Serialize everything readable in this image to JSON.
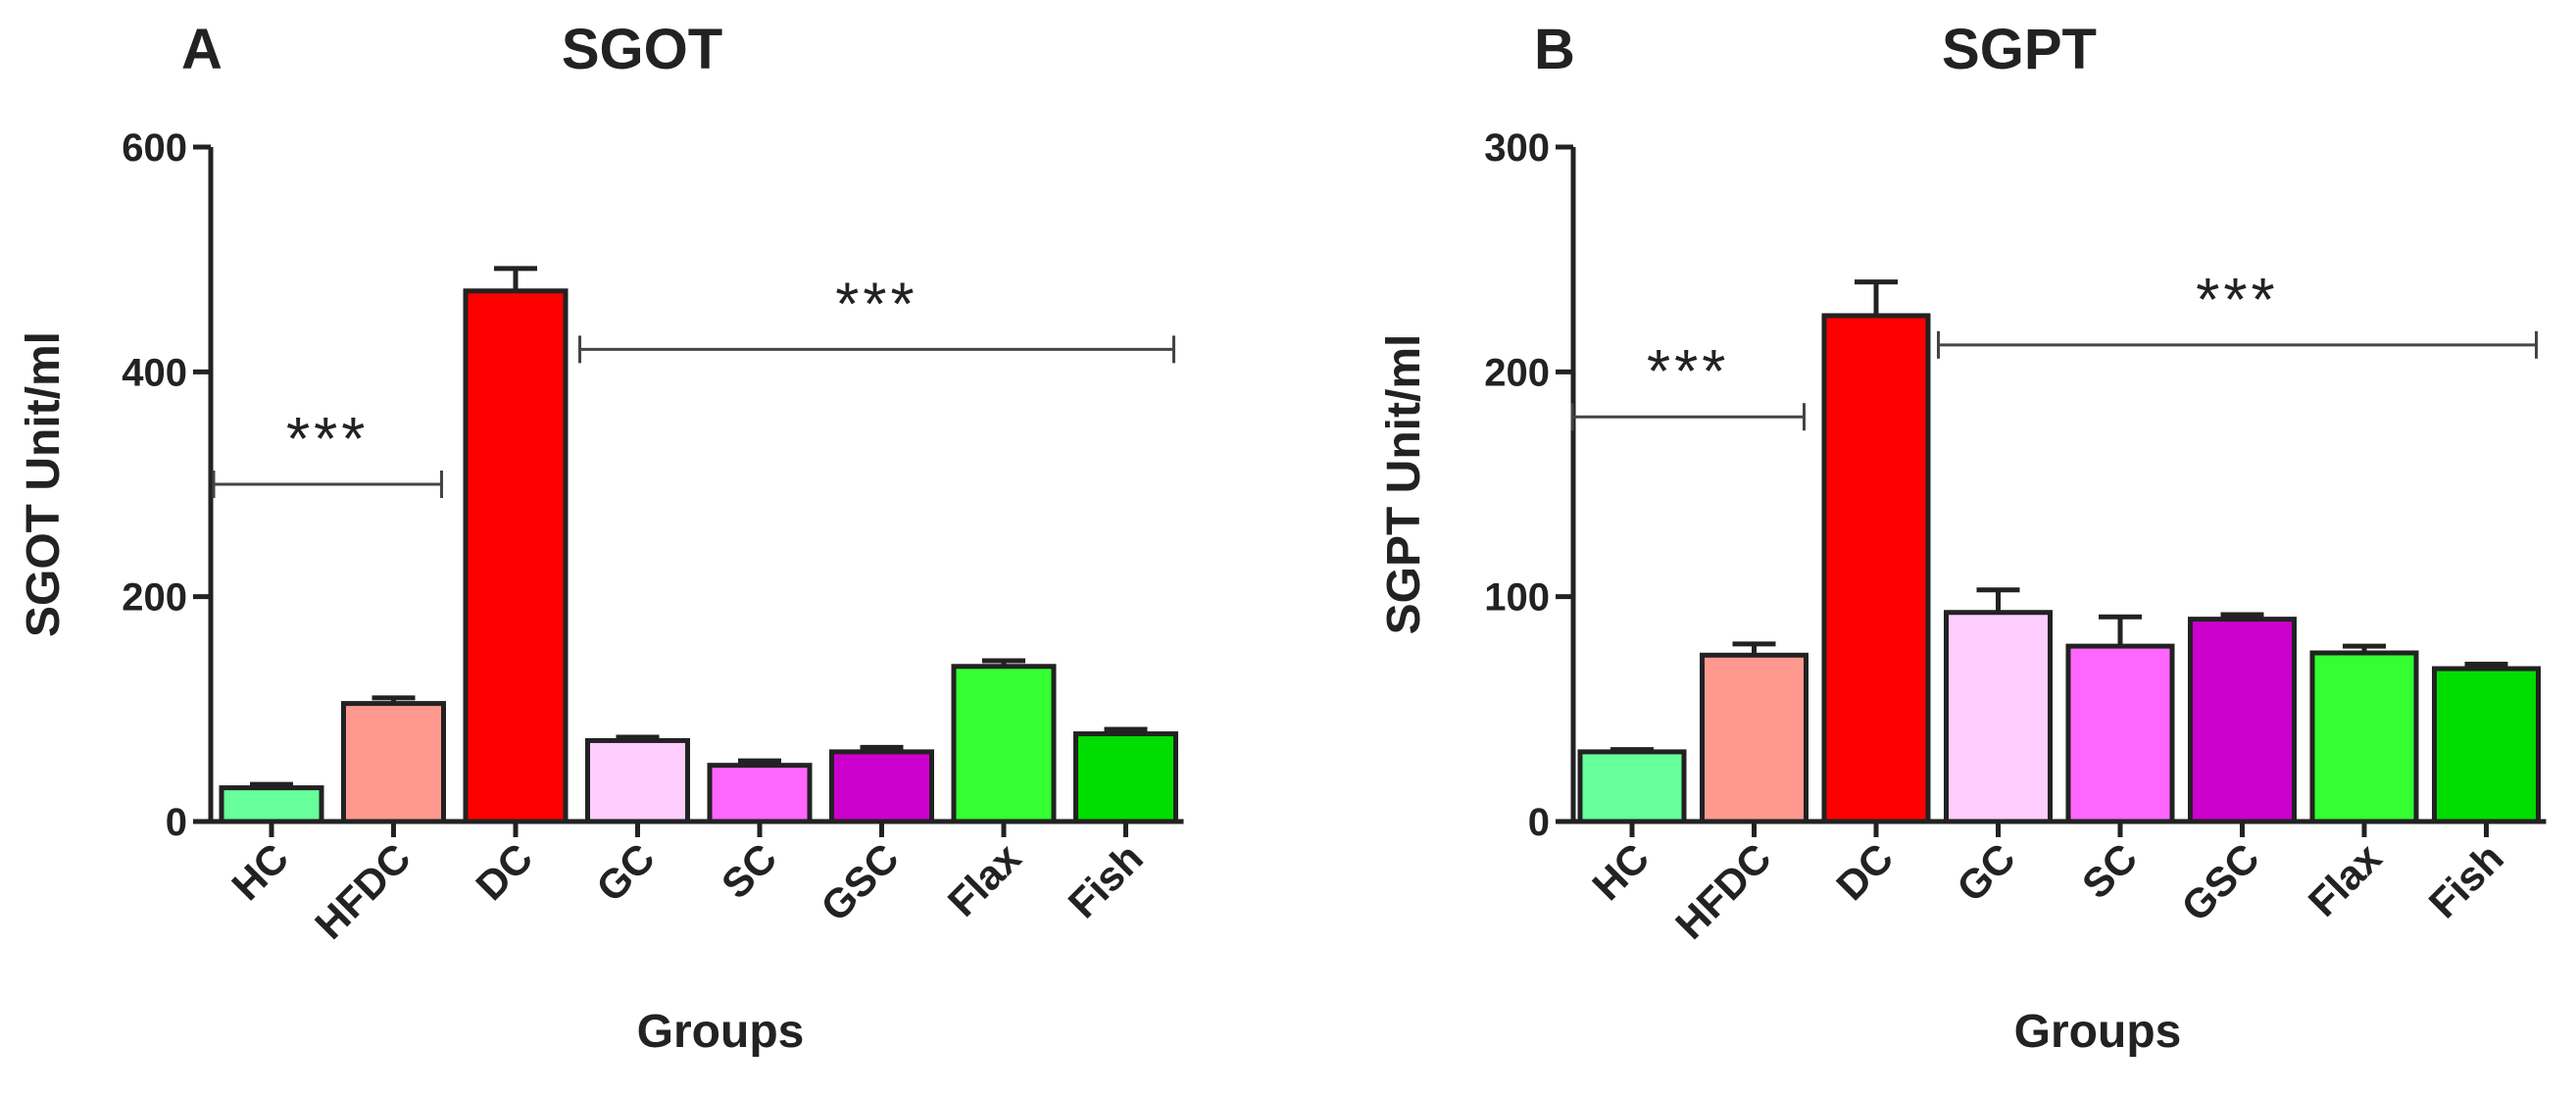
{
  "chart_data": [
    {
      "type": "bar",
      "panel": "A",
      "title": "SGOT",
      "xlabel": "Groups",
      "ylabel": "SGOT  Unit/ml",
      "ylim": [
        0,
        600
      ],
      "yticks": [
        0,
        200,
        400,
        600
      ],
      "categories": [
        "HC",
        "HFDC",
        "DC",
        "GC",
        "SC",
        "GSC",
        "Flax",
        "Fish"
      ],
      "values": [
        30,
        105,
        472,
        72,
        50,
        62,
        138,
        78
      ],
      "errors": [
        3,
        5,
        20,
        3,
        4,
        4,
        5,
        4
      ],
      "colors": [
        "#66ff99",
        "#ff9990",
        "#ff0000",
        "#ffccff",
        "#ff66ff",
        "#cc00cc",
        "#33ff33",
        "#00dd00"
      ],
      "annotations": [
        {
          "text": "***",
          "from": 0,
          "to": 1,
          "y": 300
        },
        {
          "text": "***",
          "from": 3,
          "to": 7,
          "y": 420
        }
      ]
    },
    {
      "type": "bar",
      "panel": "B",
      "title": "SGPT",
      "xlabel": "Groups",
      "ylabel": "SGPT Unit/ml",
      "ylim": [
        0,
        300
      ],
      "yticks": [
        0,
        100,
        200,
        300
      ],
      "categories": [
        "HC",
        "HFDC",
        "DC",
        "GC",
        "SC",
        "GSC",
        "Flax",
        "Fish"
      ],
      "values": [
        31,
        74,
        225,
        93,
        78,
        90,
        75,
        68
      ],
      "errors": [
        1,
        5,
        15,
        10,
        13,
        2,
        3,
        2
      ],
      "colors": [
        "#66ff99",
        "#ff9990",
        "#ff0000",
        "#ffccff",
        "#ff66ff",
        "#cc00cc",
        "#33ff33",
        "#00dd00"
      ],
      "annotations": [
        {
          "text": "***",
          "from": 0,
          "to": 1,
          "y": 180
        },
        {
          "text": "***",
          "from": 3,
          "to": 7,
          "y": 212
        }
      ]
    }
  ]
}
